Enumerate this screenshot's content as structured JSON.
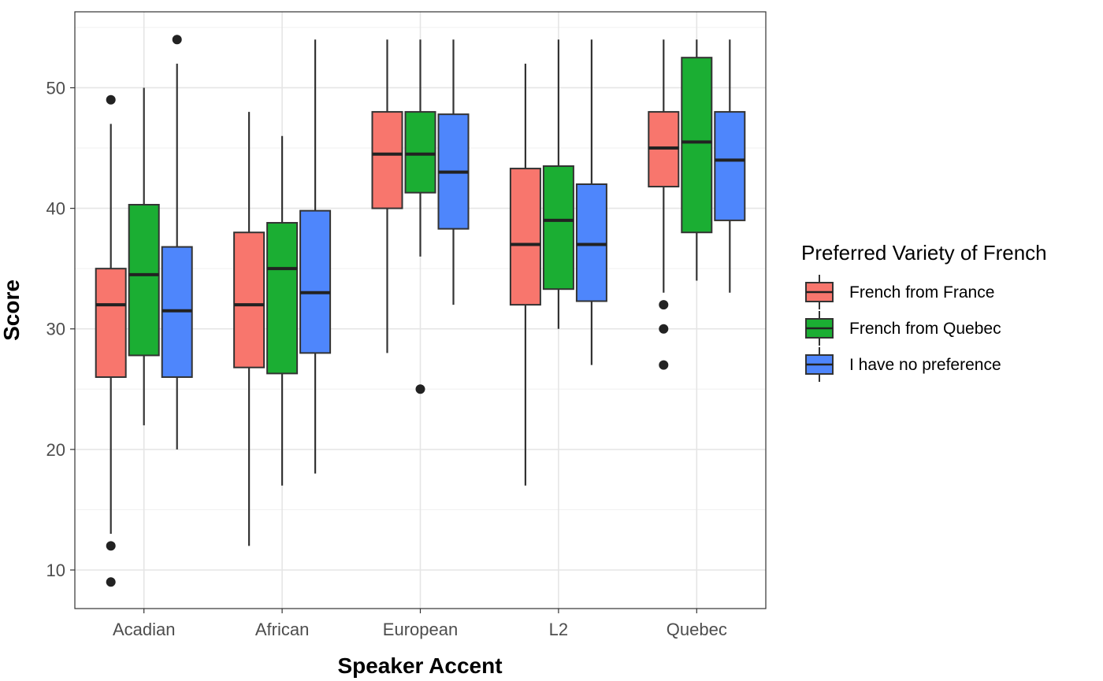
{
  "chart_data": {
    "type": "boxplot",
    "title": "",
    "xlabel": "Speaker Accent",
    "ylabel": "Score",
    "ylim": [
      6.8,
      56.3
    ],
    "y_ticks": [
      10,
      20,
      30,
      40,
      50
    ],
    "grid": true,
    "legend": {
      "title": "Preferred Variety of French",
      "position": "right"
    },
    "categories": [
      "Acadian",
      "African",
      "European",
      "L2",
      "Quebec"
    ],
    "series": [
      {
        "name": "French from France",
        "color": "#F8766D",
        "boxes": [
          {
            "category": "Acadian",
            "min": 13,
            "q1": 26,
            "median": 32,
            "q3": 35,
            "max": 47,
            "outliers": [
              49,
              12,
              9
            ]
          },
          {
            "category": "African",
            "min": 12,
            "q1": 26.8,
            "median": 32,
            "q3": 38,
            "max": 48,
            "outliers": []
          },
          {
            "category": "European",
            "min": 28,
            "q1": 40,
            "median": 44.5,
            "q3": 48,
            "max": 54,
            "outliers": []
          },
          {
            "category": "L2",
            "min": 17,
            "q1": 32,
            "median": 37,
            "q3": 43.3,
            "max": 52,
            "outliers": []
          },
          {
            "category": "Quebec",
            "min": 33,
            "q1": 41.8,
            "median": 45,
            "q3": 48,
            "max": 54,
            "outliers": [
              32,
              30,
              27
            ]
          }
        ]
      },
      {
        "name": "French from Quebec",
        "color": "#1BAE33",
        "boxes": [
          {
            "category": "Acadian",
            "min": 22,
            "q1": 27.8,
            "median": 34.5,
            "q3": 40.3,
            "max": 50,
            "outliers": []
          },
          {
            "category": "African",
            "min": 17,
            "q1": 26.3,
            "median": 35,
            "q3": 38.8,
            "max": 46,
            "outliers": []
          },
          {
            "category": "European",
            "min": 36,
            "q1": 41.3,
            "median": 44.5,
            "q3": 48,
            "max": 54,
            "outliers": [
              25
            ]
          },
          {
            "category": "L2",
            "min": 30,
            "q1": 33.3,
            "median": 39,
            "q3": 43.5,
            "max": 54,
            "outliers": []
          },
          {
            "category": "Quebec",
            "min": 34,
            "q1": 38,
            "median": 45.5,
            "q3": 52.5,
            "max": 54,
            "outliers": []
          }
        ]
      },
      {
        "name": "I have no preference",
        "color": "#4E86FC",
        "boxes": [
          {
            "category": "Acadian",
            "min": 20,
            "q1": 26,
            "median": 31.5,
            "q3": 36.8,
            "max": 52,
            "outliers": [
              54
            ]
          },
          {
            "category": "African",
            "min": 18,
            "q1": 28,
            "median": 33,
            "q3": 39.8,
            "max": 54,
            "outliers": []
          },
          {
            "category": "European",
            "min": 32,
            "q1": 38.3,
            "median": 43,
            "q3": 47.8,
            "max": 54,
            "outliers": []
          },
          {
            "category": "L2",
            "min": 27,
            "q1": 32.3,
            "median": 37,
            "q3": 42,
            "max": 54,
            "outliers": []
          },
          {
            "category": "Quebec",
            "min": 33,
            "q1": 39,
            "median": 44,
            "q3": 48,
            "max": 54,
            "outliers": []
          }
        ]
      }
    ]
  }
}
